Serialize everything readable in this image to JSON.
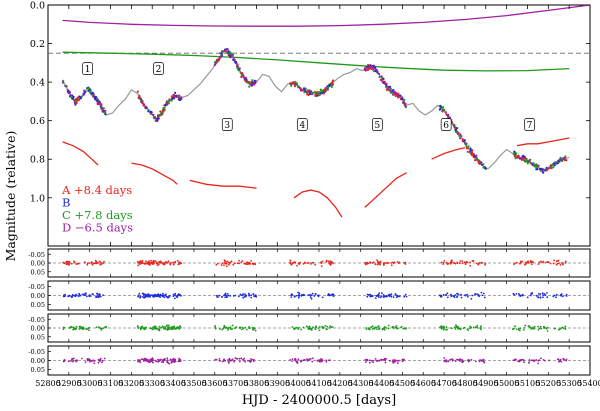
{
  "chart_data": {
    "type": "scatter",
    "xlabel": "HJD - 2400000.5 [days]",
    "ylabel": "Magnitude (relative)",
    "xlim": [
      52800,
      53400
    ],
    "x_ticks": [
      52800,
      52900,
      53000,
      53100,
      53200,
      53300,
      53400,
      53500,
      53600,
      53700,
      53800,
      53900,
      54000,
      54100,
      54200,
      54300,
      54400,
      54500,
      54600,
      54700,
      54800,
      54900,
      55000,
      55100,
      55200,
      55300,
      55400
    ],
    "x_tick_labels": [
      "52800",
      "52900",
      "53000",
      "53100",
      "53200",
      "53300",
      "53400",
      "53500",
      "53600",
      "53700",
      "53800",
      "53900",
      "54000",
      "54100",
      "54200",
      "54300",
      "54400",
      "54500",
      "54600",
      "54700",
      "54800",
      "54900",
      "55000",
      "55100",
      "55200",
      "55300",
      "55400"
    ],
    "x_range": [
      52800,
      55400
    ],
    "main_panel": {
      "ylim": [
        0.0,
        1.25
      ],
      "y_inverted": true,
      "y_ticks": [
        0.0,
        0.2,
        0.4,
        0.6,
        0.8,
        1.0
      ],
      "y_tick_labels": [
        "0.0",
        "0.2",
        "0.4",
        "0.6",
        "0.8",
        "1.0"
      ],
      "dashed_level": 0.25,
      "segment_labels": [
        {
          "label": "1",
          "x": 52990,
          "y": 0.33
        },
        {
          "label": "2",
          "x": 53330,
          "y": 0.33
        },
        {
          "label": "3",
          "x": 53660,
          "y": 0.62
        },
        {
          "label": "4",
          "x": 54020,
          "y": 0.62
        },
        {
          "label": "5",
          "x": 54380,
          "y": 0.62
        },
        {
          "label": "6",
          "x": 54710,
          "y": 0.62
        },
        {
          "label": "7",
          "x": 55110,
          "y": 0.62
        }
      ],
      "legend": [
        {
          "name": "A +8.4 days",
          "color": "#e8261d"
        },
        {
          "name": "B",
          "color": "#1f2bd8"
        },
        {
          "name": "C +7.8 days",
          "color": "#1f9a1f"
        },
        {
          "name": "D −6.5 days",
          "color": "#a020a0"
        }
      ],
      "model_curve": {
        "x": [
          52870,
          52900,
          52930,
          52960,
          52990,
          53020,
          53050,
          53080,
          53110,
          53140,
          53170,
          53200,
          53230,
          53260,
          53290,
          53320,
          53350,
          53380,
          53410,
          53440,
          53470,
          53500,
          53530,
          53560,
          53590,
          53620,
          53650,
          53680,
          53710,
          53740,
          53770,
          53800,
          53830,
          53860,
          53890,
          53920,
          53950,
          53980,
          54010,
          54040,
          54070,
          54100,
          54130,
          54160,
          54190,
          54220,
          54250,
          54280,
          54310,
          54340,
          54370,
          54400,
          54430,
          54460,
          54490,
          54520,
          54550,
          54580,
          54610,
          54640,
          54670,
          54700,
          54730,
          54760,
          54790,
          54820,
          54850,
          54880,
          54910,
          54940,
          54970,
          55000,
          55030,
          55060,
          55090,
          55120,
          55150,
          55180,
          55210,
          55240,
          55270,
          55300
        ],
        "y": [
          0.39,
          0.45,
          0.5,
          0.48,
          0.43,
          0.47,
          0.52,
          0.57,
          0.56,
          0.52,
          0.49,
          0.44,
          0.46,
          0.52,
          0.55,
          0.6,
          0.55,
          0.5,
          0.47,
          0.48,
          0.47,
          0.44,
          0.41,
          0.37,
          0.33,
          0.28,
          0.23,
          0.26,
          0.32,
          0.38,
          0.41,
          0.4,
          0.36,
          0.37,
          0.42,
          0.45,
          0.41,
          0.4,
          0.43,
          0.45,
          0.46,
          0.46,
          0.44,
          0.41,
          0.38,
          0.36,
          0.35,
          0.33,
          0.34,
          0.32,
          0.33,
          0.38,
          0.43,
          0.46,
          0.48,
          0.52,
          0.51,
          0.55,
          0.57,
          0.55,
          0.52,
          0.55,
          0.6,
          0.65,
          0.7,
          0.75,
          0.79,
          0.83,
          0.85,
          0.82,
          0.78,
          0.75,
          0.77,
          0.79,
          0.8,
          0.82,
          0.84,
          0.86,
          0.84,
          0.82,
          0.8,
          0.79
        ],
        "color": "#999999"
      },
      "red_offset_curves": [
        {
          "x": [
            52870,
            52920,
            52970,
            53010,
            53040
          ],
          "y": [
            0.71,
            0.73,
            0.76,
            0.8,
            0.83
          ]
        },
        {
          "x": [
            53200,
            53250,
            53300,
            53350,
            53400,
            53420
          ],
          "y": [
            0.82,
            0.83,
            0.85,
            0.88,
            0.91,
            0.93
          ]
        },
        {
          "x": [
            53480,
            53560,
            53640,
            53720,
            53800
          ],
          "y": [
            0.91,
            0.93,
            0.94,
            0.94,
            0.95
          ]
        },
        {
          "x": [
            53980,
            54020,
            54060,
            54100,
            54140,
            54180,
            54210
          ],
          "y": [
            1.0,
            0.97,
            0.96,
            0.97,
            1.0,
            1.05,
            1.1
          ]
        },
        {
          "x": [
            54320,
            54370,
            54420,
            54470,
            54520
          ],
          "y": [
            1.05,
            1.0,
            0.95,
            0.9,
            0.87
          ]
        },
        {
          "x": [
            54640,
            54700,
            54760,
            54800
          ],
          "y": [
            0.8,
            0.77,
            0.75,
            0.74
          ]
        },
        {
          "x": [
            55050,
            55100,
            55150,
            55200,
            55250,
            55300
          ],
          "y": [
            0.73,
            0.72,
            0.72,
            0.71,
            0.7,
            0.69
          ]
        }
      ],
      "purple_curve": {
        "x": [
          52870,
          53000,
          53200,
          53400,
          53600,
          53800,
          54000,
          54200,
          54400,
          54600,
          54800,
          55000,
          55200,
          55400
        ],
        "y": [
          0.08,
          0.09,
          0.1,
          0.106,
          0.109,
          0.11,
          0.11,
          0.107,
          0.1,
          0.09,
          0.075,
          0.055,
          0.028,
          0.0
        ]
      },
      "green_curve": {
        "x": [
          52870,
          53100,
          53300,
          53500,
          53700,
          53900,
          54100,
          54300,
          54500,
          54700,
          54900,
          55100,
          55300
        ],
        "y": [
          0.245,
          0.25,
          0.255,
          0.262,
          0.272,
          0.285,
          0.3,
          0.315,
          0.328,
          0.338,
          0.342,
          0.34,
          0.33
        ]
      }
    },
    "residual_panels": [
      {
        "name": "A",
        "color": "#e8261d",
        "y_tick_labels": [
          "-0.05",
          "0.00",
          "0.05"
        ]
      },
      {
        "name": "B",
        "color": "#1f2bd8",
        "y_tick_labels": [
          "-0.05",
          "0.00",
          "0.05"
        ]
      },
      {
        "name": "C",
        "color": "#1f9a1f",
        "y_tick_labels": [
          "-0.05",
          "0.00",
          "0.05"
        ]
      },
      {
        "name": "D",
        "color": "#a020a0",
        "y_tick_labels": [
          "-0.05",
          "0.00",
          "0.05"
        ]
      }
    ],
    "observing_seasons": [
      [
        52870,
        53080
      ],
      [
        53230,
        53440
      ],
      [
        53600,
        53800
      ],
      [
        53960,
        54170
      ],
      [
        54320,
        54520
      ],
      [
        54680,
        54900
      ],
      [
        55030,
        55290
      ]
    ],
    "residual_ylim": [
      -0.08,
      0.08
    ]
  }
}
